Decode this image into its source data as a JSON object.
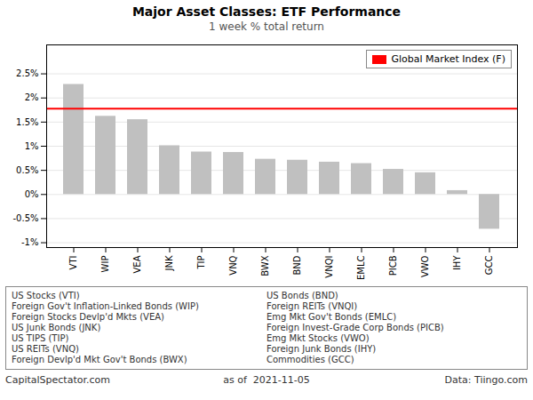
{
  "chart_data": {
    "type": "bar",
    "title": "Major Asset Classes: ETF Performance",
    "subtitle": "1 week % total return",
    "categories": [
      "VTI",
      "WIP",
      "VEA",
      "JNK",
      "TIP",
      "VNQ",
      "BWX",
      "BND",
      "VNQI",
      "EMLC",
      "PICB",
      "VWO",
      "IHY",
      "GCC"
    ],
    "values": [
      2.28,
      1.62,
      1.55,
      1.01,
      0.88,
      0.87,
      0.73,
      0.71,
      0.67,
      0.64,
      0.52,
      0.45,
      0.08,
      -0.72
    ],
    "color": "#c0c0c0",
    "ylim": [
      -1.1,
      3.1
    ],
    "yticks": [
      {
        "value": -1.0,
        "label": "-1%"
      },
      {
        "value": -0.5,
        "label": "-0.5%"
      },
      {
        "value": 0.0,
        "label": "0%"
      },
      {
        "value": 0.5,
        "label": "0.5%"
      },
      {
        "value": 1.0,
        "label": "1%"
      },
      {
        "value": 1.5,
        "label": "1.5%"
      },
      {
        "value": 2.0,
        "label": "2%"
      },
      {
        "value": 2.5,
        "label": "2.5%"
      }
    ],
    "grid": true,
    "legend": "upper right",
    "reference_line": {
      "value": 1.78,
      "label": "Global Market Index (F)",
      "color": "#ff0000"
    },
    "category_notes": [
      "US Stocks (VTI)",
      "Foreign Gov't Inflation-Linked Bonds (WIP)",
      "Foreign Stocks Devlp'd Mkts (VEA)",
      "US Junk Bonds (JNK)",
      "US TIPS (TIP)",
      "US REITs (VNQ)",
      "Foreign Devlp'd Mkt Gov't Bonds (BWX)",
      "US Bonds (BND)",
      "Foreign REITs (VNQI)",
      "Emg Mkt Gov't Bonds (EMLC)",
      "Foreign Invest-Grade Corp Bonds (PICB)",
      "Emg Mkt Stocks (VWO)",
      "Foreign Junk Bonds (IHY)",
      "Commodities (GCC)"
    ],
    "footer": [
      "CapitalSpectator.com",
      "as of  2021-11-05",
      "Data: Tiingo.com"
    ]
  }
}
